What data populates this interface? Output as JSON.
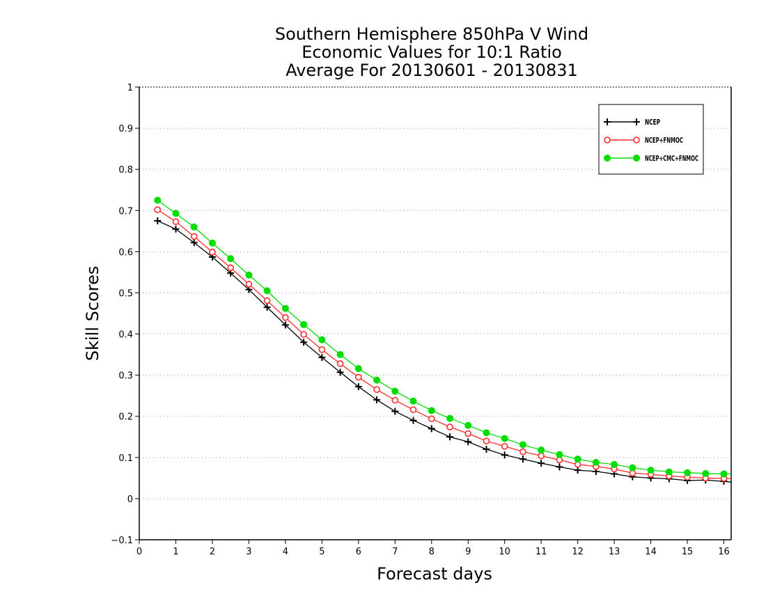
{
  "chart_data": {
    "type": "line",
    "title": [
      "Southern Hemisphere 850hPa V Wind",
      "Economic Values for 10:1 Ratio",
      "Average For 20130601 - 20130831"
    ],
    "xlabel": "Forecast days",
    "ylabel": "Skill Scores",
    "xlim": [
      0,
      16.2
    ],
    "ylim": [
      -0.1,
      1
    ],
    "xticks": [
      "0",
      "1",
      "2",
      "3",
      "4",
      "5",
      "6",
      "7",
      "8",
      "9",
      "10",
      "11",
      "12",
      "13",
      "14",
      "15",
      "16"
    ],
    "yticks": [
      "−0.1",
      "0",
      "0.1",
      "0.2",
      "0.3",
      "0.4",
      "0.5",
      "0.6",
      "0.7",
      "0.8",
      "0.9",
      "1"
    ],
    "grid": "horizontal dotted",
    "legend_position": "top-right",
    "x": [
      0.5,
      1,
      1.5,
      2,
      2.5,
      3,
      3.5,
      4,
      4.5,
      5,
      5.5,
      6,
      6.5,
      7,
      7.5,
      8,
      8.5,
      9,
      9.5,
      10,
      10.5,
      11,
      11.5,
      12,
      12.5,
      13,
      13.5,
      14,
      14.5,
      15,
      15.5,
      16,
      16.2
    ],
    "series": [
      {
        "name": "NCEP",
        "color": "#000000",
        "marker": "plus",
        "values": [
          0.675,
          0.655,
          0.622,
          0.587,
          0.548,
          0.508,
          0.465,
          0.422,
          0.38,
          0.343,
          0.307,
          0.272,
          0.24,
          0.212,
          0.19,
          0.17,
          0.15,
          0.138,
          0.12,
          0.106,
          0.096,
          0.086,
          0.077,
          0.069,
          0.066,
          0.06,
          0.053,
          0.05,
          0.048,
          0.044,
          0.045,
          0.042,
          0.04
        ]
      },
      {
        "name": "NCEP+FNMOC",
        "color": "#ff2a2a",
        "marker": "open-circle",
        "values": [
          0.702,
          0.673,
          0.637,
          0.599,
          0.561,
          0.521,
          0.481,
          0.44,
          0.399,
          0.362,
          0.328,
          0.295,
          0.265,
          0.239,
          0.216,
          0.194,
          0.174,
          0.158,
          0.14,
          0.127,
          0.114,
          0.104,
          0.094,
          0.083,
          0.078,
          0.072,
          0.062,
          0.059,
          0.055,
          0.052,
          0.05,
          0.049,
          0.049
        ]
      },
      {
        "name": "NCEP+CMC+FNMOC",
        "color": "#00dd00",
        "marker": "filled-circle",
        "values": [
          0.725,
          0.693,
          0.66,
          0.621,
          0.583,
          0.543,
          0.505,
          0.462,
          0.423,
          0.386,
          0.35,
          0.316,
          0.288,
          0.261,
          0.237,
          0.214,
          0.195,
          0.178,
          0.16,
          0.146,
          0.131,
          0.118,
          0.107,
          0.096,
          0.088,
          0.083,
          0.075,
          0.069,
          0.065,
          0.063,
          0.061,
          0.06,
          0.06
        ]
      }
    ]
  }
}
